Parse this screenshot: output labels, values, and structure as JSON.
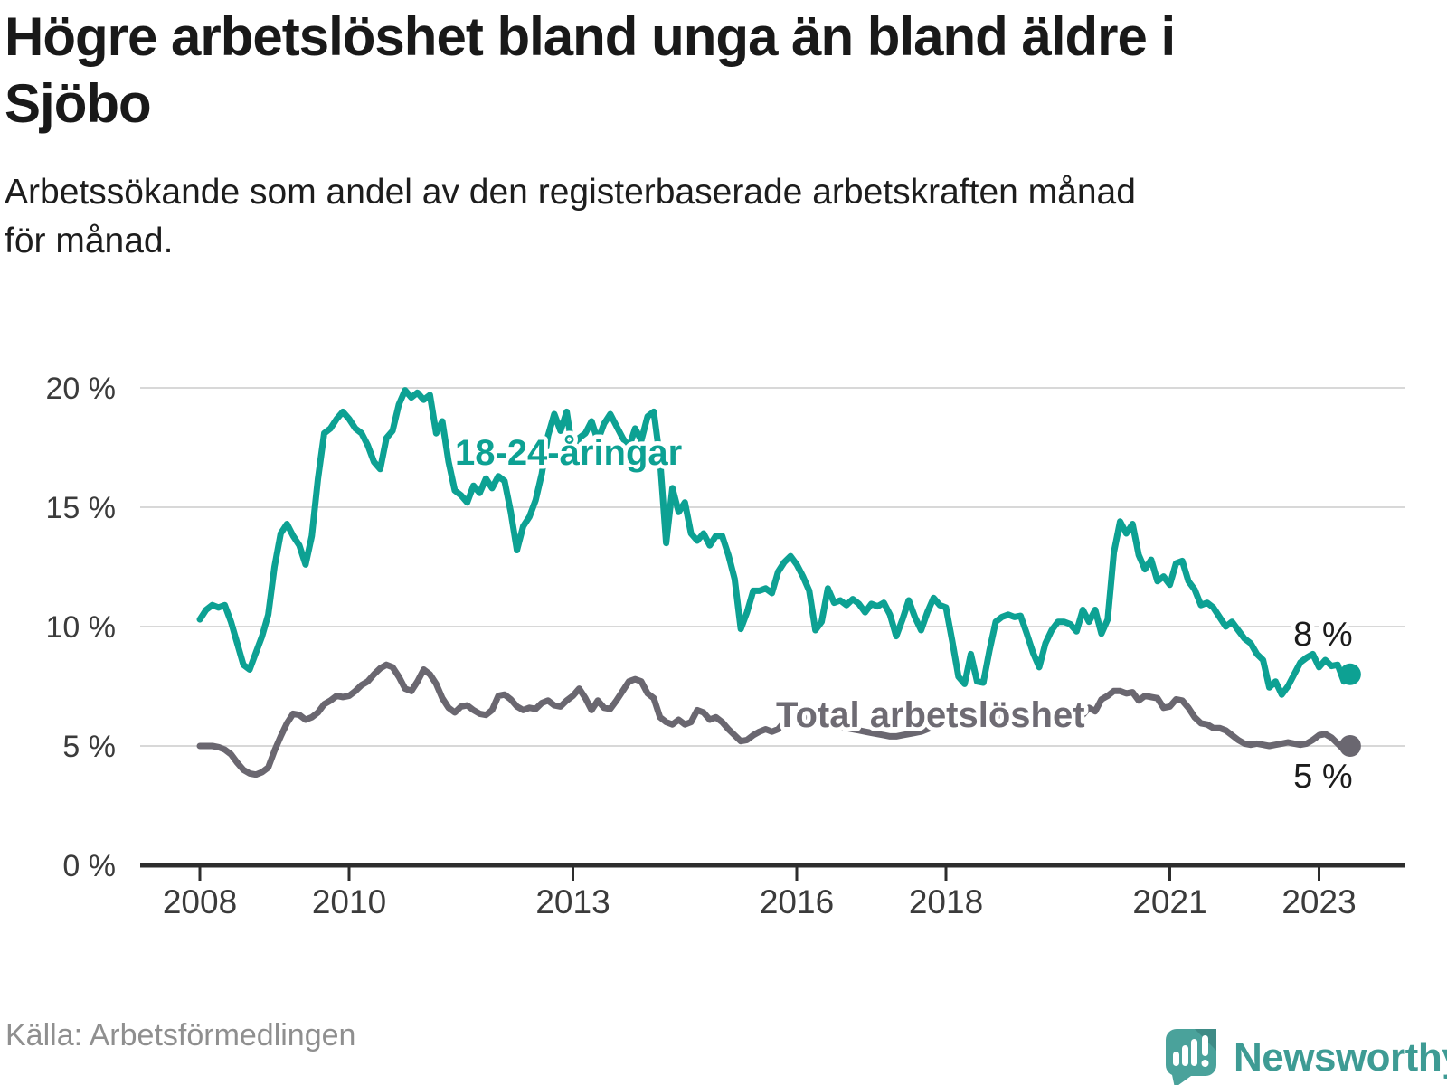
{
  "header": {
    "title_lines": [
      "Högre arbetslöshet bland unga än bland äldre i",
      "Sjöbo"
    ],
    "subtitle_lines": [
      "Arbetssökande som andel av den registerbaserade arbetskraften månad",
      "för månad."
    ]
  },
  "footer": {
    "source": "Källa: Arbetsförmedlingen",
    "brand": "Newsworthy",
    "logo_icon": "newsworthy-speech-bubble-bar-chart-icon"
  },
  "colors": {
    "young_series": "#0da193",
    "total_series": "#6a6770",
    "total_label": "#6e6b73",
    "grid": "#d8d8d8",
    "axis": "#2d2d2d",
    "tick_text": "#3b3b3b",
    "end_label_text": "#1c1c1c",
    "brand_teal": "#4aa29b",
    "brand_teal_dark": "#3e8b86"
  },
  "chart_data": {
    "type": "line",
    "title": "Högre arbetslöshet bland unga än bland äldre i Sjöbo",
    "subtitle": "Arbetssökande som andel av den registerbaserade arbetskraften månad för månad.",
    "unit": "%",
    "frequency": "monthly",
    "x_start_month": "2008-01",
    "x_end_month": "2023-06",
    "xlim": [
      2007.2,
      2024.2
    ],
    "ylim": [
      0,
      21
    ],
    "grid": "horizontal",
    "legend_position": "inline-labels",
    "y_ticks": [
      {
        "value": 20,
        "label": "20 %"
      },
      {
        "value": 15,
        "label": "15 %"
      },
      {
        "value": 10,
        "label": "10 %"
      },
      {
        "value": 5,
        "label": "5 %"
      },
      {
        "value": 0,
        "label": "0 %"
      }
    ],
    "x_ticks": [
      {
        "value": 2008,
        "label": "2008"
      },
      {
        "value": 2010,
        "label": "2010"
      },
      {
        "value": 2013,
        "label": "2013"
      },
      {
        "value": 2016,
        "label": "2016"
      },
      {
        "value": 2018,
        "label": "2018"
      },
      {
        "value": 2021,
        "label": "2021"
      },
      {
        "value": 2023,
        "label": "2023"
      }
    ],
    "series": [
      {
        "name": "18-24-åringar",
        "color": "#0da193",
        "end_label": "8 %",
        "last_value": 8,
        "values": [
          10.3,
          10.7,
          10.9,
          10.8,
          10.9,
          10.2,
          9.3,
          8.4,
          8.2,
          8.9,
          9.6,
          10.5,
          12.5,
          13.9,
          14.3,
          13.8,
          13.4,
          12.6,
          13.8,
          16.2,
          18.1,
          18.3,
          18.7,
          19.0,
          18.7,
          18.3,
          18.1,
          17.6,
          16.9,
          16.6,
          17.9,
          18.2,
          19.3,
          19.9,
          19.6,
          19.8,
          19.5,
          19.7,
          18.1,
          18.6,
          16.9,
          15.7,
          15.5,
          15.2,
          15.9,
          15.6,
          16.2,
          15.8,
          16.3,
          16.1,
          14.8,
          13.2,
          14.2,
          14.6,
          15.3,
          16.4,
          18.0,
          18.9,
          18.2,
          19.0,
          17.3,
          17.9,
          18.1,
          18.6,
          17.8,
          18.5,
          18.9,
          18.4,
          17.9,
          17.5,
          18.3,
          17.8,
          18.8,
          19.0,
          17.0,
          13.5,
          15.8,
          14.8,
          15.2,
          13.9,
          13.6,
          13.9,
          13.4,
          13.8,
          13.8,
          13.0,
          12.0,
          9.9,
          10.6,
          11.5,
          11.5,
          11.6,
          11.4,
          12.3,
          12.7,
          12.95,
          12.6,
          12.1,
          11.5,
          9.85,
          10.2,
          11.6,
          11.0,
          11.1,
          10.9,
          11.15,
          10.95,
          10.6,
          10.95,
          10.85,
          11.0,
          10.5,
          9.6,
          10.3,
          11.1,
          10.4,
          9.85,
          10.6,
          11.2,
          10.9,
          10.8,
          9.4,
          7.9,
          7.6,
          8.85,
          7.7,
          7.65,
          9.0,
          10.2,
          10.4,
          10.5,
          10.4,
          10.45,
          9.7,
          8.9,
          8.3,
          9.3,
          9.85,
          10.2,
          10.2,
          10.1,
          9.8,
          10.7,
          10.2,
          10.7,
          9.7,
          10.3,
          13.1,
          14.4,
          13.9,
          14.3,
          13.0,
          12.4,
          12.8,
          11.9,
          12.1,
          11.75,
          12.65,
          12.75,
          11.9,
          11.55,
          10.9,
          11.0,
          10.8,
          10.4,
          10.0,
          10.2,
          9.85,
          9.5,
          9.3,
          8.85,
          8.6,
          7.45,
          7.7,
          7.15,
          7.5,
          8.0,
          8.5,
          8.7,
          8.85,
          8.3,
          8.6,
          8.35,
          8.4,
          7.7,
          8.0
        ]
      },
      {
        "name": "Total arbetslöshet",
        "color": "#6a6770",
        "end_label": "5 %",
        "last_value": 5,
        "values": [
          5.0,
          5.0,
          5.0,
          4.95,
          4.85,
          4.65,
          4.3,
          4.0,
          3.85,
          3.8,
          3.9,
          4.1,
          4.8,
          5.4,
          5.95,
          6.35,
          6.3,
          6.1,
          6.2,
          6.4,
          6.75,
          6.9,
          7.1,
          7.05,
          7.1,
          7.3,
          7.55,
          7.7,
          8.0,
          8.25,
          8.4,
          8.3,
          7.9,
          7.4,
          7.3,
          7.7,
          8.2,
          8.0,
          7.6,
          7.0,
          6.6,
          6.4,
          6.65,
          6.7,
          6.5,
          6.35,
          6.3,
          6.5,
          7.1,
          7.15,
          6.95,
          6.65,
          6.5,
          6.6,
          6.55,
          6.8,
          6.9,
          6.7,
          6.65,
          6.9,
          7.1,
          7.4,
          7.0,
          6.5,
          6.9,
          6.6,
          6.55,
          6.9,
          7.3,
          7.7,
          7.8,
          7.7,
          7.2,
          7.0,
          6.2,
          6.0,
          5.9,
          6.1,
          5.9,
          6.0,
          6.5,
          6.4,
          6.1,
          6.2,
          6.0,
          5.7,
          5.45,
          5.2,
          5.25,
          5.45,
          5.6,
          5.7,
          5.6,
          5.7,
          6.0,
          6.2,
          6.3,
          6.3,
          6.2,
          6.1,
          6.0,
          5.9,
          5.85,
          5.8,
          5.75,
          5.7,
          5.65,
          5.6,
          5.55,
          5.5,
          5.45,
          5.4,
          5.4,
          5.45,
          5.5,
          5.55,
          5.6,
          5.7,
          5.8,
          5.9,
          5.95,
          6.0,
          6.1,
          6.15,
          6.2,
          6.25,
          6.3,
          6.3,
          6.25,
          6.3,
          6.3,
          6.35,
          6.4,
          6.35,
          6.3,
          6.35,
          6.3,
          6.3,
          6.3,
          6.35,
          6.3,
          6.3,
          6.3,
          6.6,
          6.45,
          6.95,
          7.1,
          7.3,
          7.3,
          7.2,
          7.25,
          6.9,
          7.1,
          7.05,
          7.0,
          6.6,
          6.65,
          6.95,
          6.9,
          6.6,
          6.2,
          5.95,
          5.9,
          5.75,
          5.75,
          5.65,
          5.45,
          5.25,
          5.1,
          5.05,
          5.1,
          5.05,
          5.0,
          5.05,
          5.1,
          5.15,
          5.1,
          5.05,
          5.1,
          5.25,
          5.45,
          5.5,
          5.35,
          5.1,
          4.85,
          5.0
        ]
      }
    ]
  }
}
